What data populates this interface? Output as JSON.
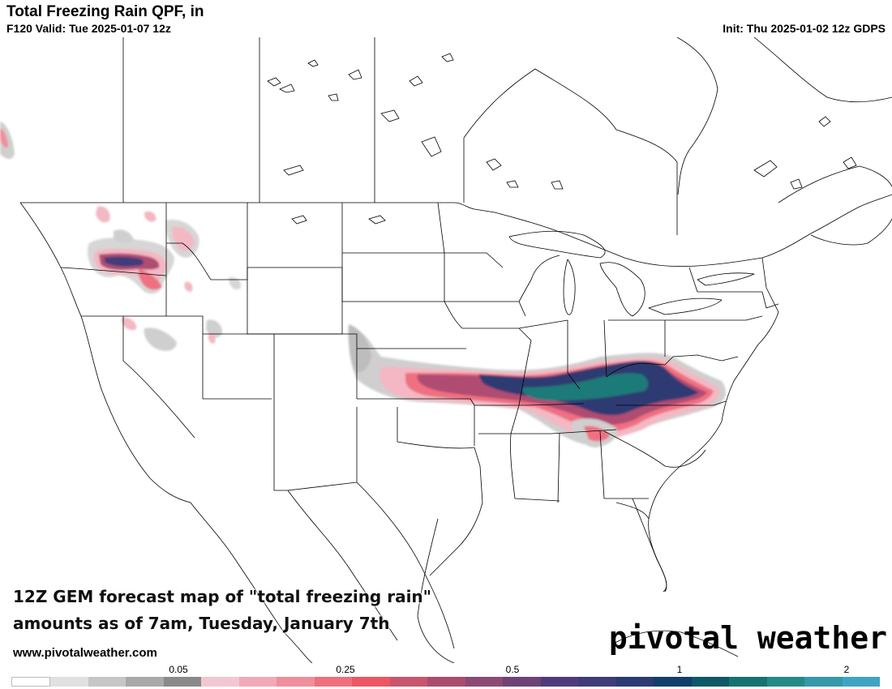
{
  "header": {
    "title": "Total Freezing Rain QPF, in",
    "valid": "F120 Valid: Tue 2025-01-07 12z",
    "init": "Init: Thu 2025-01-02 12z GDPS"
  },
  "caption": {
    "line1": "12Z GEM forecast map of \"total freezing rain\"",
    "line2": "amounts as of 7am, Tuesday, January 7th"
  },
  "site_url": "www.pivotalweather.com",
  "brand": "pivotal weather",
  "legend": {
    "ticks": [
      "0.05",
      "0.25",
      "0.5",
      "1",
      "2"
    ],
    "colors": [
      "#ffffff",
      "#e1e1e1",
      "#c6c6c6",
      "#a9a9a9",
      "#8a8a8a",
      "#f3c7d1",
      "#f2a9b7",
      "#f08e9b",
      "#ef6f7d",
      "#ec5762",
      "#c9556e",
      "#a94d6e",
      "#8b4a73",
      "#6d4378",
      "#513c7a",
      "#3f3c79",
      "#2b3b74",
      "#123f6a",
      "#0e5868",
      "#177270",
      "#258a86",
      "#3698a9",
      "#3fa4c4"
    ]
  },
  "map": {
    "colors": {
      "light_gray": "#cfcfcf",
      "gray": "#9a9a9a",
      "light_pink": "#f3b8c3",
      "pink": "#ef6f82",
      "magenta": "#b04c72",
      "purple": "#5a3d7a",
      "navy": "#2f3b72",
      "teal": "#1f7a78",
      "border": "#000000"
    }
  }
}
